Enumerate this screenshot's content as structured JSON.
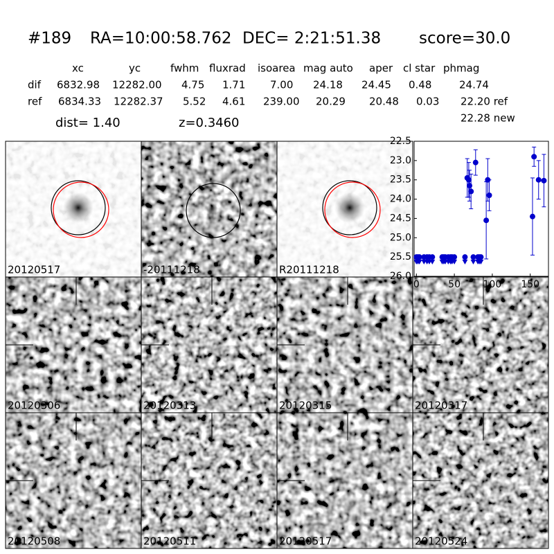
{
  "header": {
    "id": "#189",
    "ra": "RA=10:00:58.762",
    "dec": "DEC= 2:21:51.38",
    "score": "score=30.0"
  },
  "table": {
    "columns": [
      "xc",
      "yc",
      "fwhm",
      "fluxrad",
      "isoarea",
      "mag auto",
      "aper",
      "cl star",
      "phmag"
    ],
    "rows": [
      [
        "dif",
        "6832.98",
        "12282.00",
        "4.75",
        "1.71",
        "7.00",
        "24.18",
        "24.45",
        "0.48",
        "24.74"
      ],
      [
        "ref",
        "6834.33",
        "12282.37",
        "5.52",
        "4.61",
        "239.00",
        "20.29",
        "20.48",
        "0.03",
        "22.20 ref"
      ]
    ],
    "extra": "22.28 new"
  },
  "dist": "dist=  1.40",
  "z": "z=0.3460",
  "panels": [
    {
      "label": "20120517",
      "label_color": "#000000",
      "style": "light"
    },
    {
      "label": "-20111218",
      "label_color": "#000000",
      "style": "diff"
    },
    {
      "label": "R20111218",
      "label_color": "#000000",
      "style": "light"
    },
    {
      "label": "20120306",
      "label_color": "#000000",
      "style": "noise"
    },
    {
      "label": "20120313",
      "label_color": "#000000",
      "style": "noise"
    },
    {
      "label": "20120315",
      "label_color": "#000000",
      "style": "noise"
    },
    {
      "label": "20120317",
      "label_color": "#000000",
      "style": "noise"
    },
    {
      "label": "20120508",
      "label_color": "#000000",
      "style": "noise"
    },
    {
      "label": "20120511",
      "label_color": "#000000",
      "style": "noise"
    },
    {
      "label": "20120517",
      "label_color": "#ff0000",
      "style": "noise"
    },
    {
      "label": "20120524",
      "label_color": "#000000",
      "style": "noise"
    }
  ],
  "chart_data": {
    "type": "errorbar",
    "xlim": [
      -3,
      174
    ],
    "ylim": [
      26.0,
      22.5
    ],
    "xticks": [
      0,
      50,
      100,
      150
    ],
    "yticks": [
      22.5,
      {
        "value": 23,
        "label": "23.0"
      },
      23.5,
      {
        "value": 24,
        "label": "24.0"
      },
      24.5,
      {
        "value": 25,
        "label": "25.0"
      },
      25.5,
      {
        "value": 26,
        "label": "26.0"
      }
    ],
    "series": [
      {
        "marker": "circle",
        "color": "#0000cc",
        "x": [
          67,
          69,
          70,
          72,
          78,
          92,
          94,
          96,
          153,
          155,
          161,
          168
        ],
        "values": [
          23.45,
          23.5,
          23.65,
          23.8,
          23.05,
          24.55,
          23.5,
          23.9,
          24.45,
          22.9,
          23.5,
          23.52
        ],
        "errors": [
          0.5,
          0.45,
          0.4,
          0.45,
          0.33,
          1.0,
          0.55,
          0.4,
          1.0,
          0.25,
          0.5,
          0.68
        ]
      },
      {
        "marker": "circle",
        "color": "#0000cc",
        "x": [
          0,
          2,
          4,
          10,
          14,
          17,
          21,
          34,
          36,
          38,
          42,
          45,
          47,
          50,
          64,
          75,
          81,
          83,
          85
        ],
        "values": [
          25.5,
          25.5,
          25.5,
          25.5,
          25.5,
          25.5,
          25.5,
          25.5,
          25.5,
          25.5,
          25.5,
          25.5,
          25.5,
          25.5,
          25.5,
          25.5,
          25.5,
          25.5,
          25.5
        ]
      },
      {
        "marker": "triangle-down",
        "color": "#0000cc",
        "x": [
          0,
          2,
          4,
          10,
          14,
          17,
          21,
          34,
          36,
          38,
          42,
          45,
          47,
          50,
          64,
          75,
          81,
          83,
          85
        ],
        "values": [
          25.62,
          25.62,
          25.62,
          25.62,
          25.62,
          25.62,
          25.62,
          25.62,
          25.62,
          25.62,
          25.62,
          25.62,
          25.62,
          25.62,
          25.62,
          25.62,
          25.62,
          25.62,
          25.62
        ]
      }
    ]
  }
}
